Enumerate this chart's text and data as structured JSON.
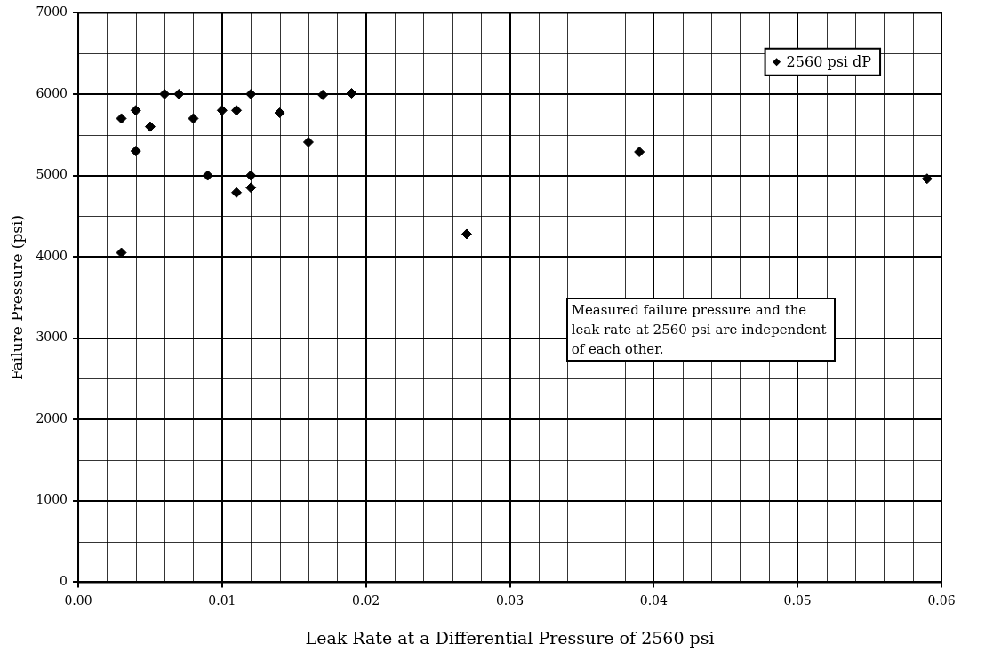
{
  "chart_data": {
    "type": "scatter",
    "xlabel": "Leak Rate at a Differential Pressure of 2560 psi",
    "ylabel": "Failure Pressure (psi)",
    "annotations": [
      "Measured failure pressure and the leak rate at 2560 psi are independent of each other."
    ],
    "series": [
      {
        "name": "2560 psi dP",
        "color": "#000000",
        "x": [
          0.003,
          0.003,
          0.004,
          0.004,
          0.005,
          0.006,
          0.007,
          0.008,
          0.009,
          0.01,
          0.011,
          0.011,
          0.012,
          0.012,
          0.012,
          0.014,
          0.016,
          0.017,
          0.019,
          0.027,
          0.039,
          0.059
        ],
        "values": [
          5700,
          4050,
          5800,
          5300,
          5600,
          6000,
          6000,
          5700,
          5000,
          5800,
          4790,
          5800,
          6000,
          5000,
          4850,
          5770,
          5410,
          5990,
          6010,
          4280,
          5290,
          4960
        ]
      }
    ],
    "xlim": [
      0,
      0.06
    ],
    "xticks": [
      {
        "value": 0,
        "label": "0.00"
      },
      {
        "value": 0.01,
        "label": "0.01"
      },
      {
        "value": 0.02,
        "label": "0.02"
      },
      {
        "value": 0.03,
        "label": "0.03"
      },
      {
        "value": 0.04,
        "label": "0.04"
      },
      {
        "value": 0.05,
        "label": "0.05"
      },
      {
        "value": 0.06,
        "label": "0.06"
      }
    ],
    "ylim": [
      0,
      7000
    ],
    "yticks": [
      0,
      1000,
      2000,
      3000,
      4000,
      5000,
      6000,
      7000
    ],
    "grid": true,
    "legend": "top right",
    "marker": "diamond"
  }
}
